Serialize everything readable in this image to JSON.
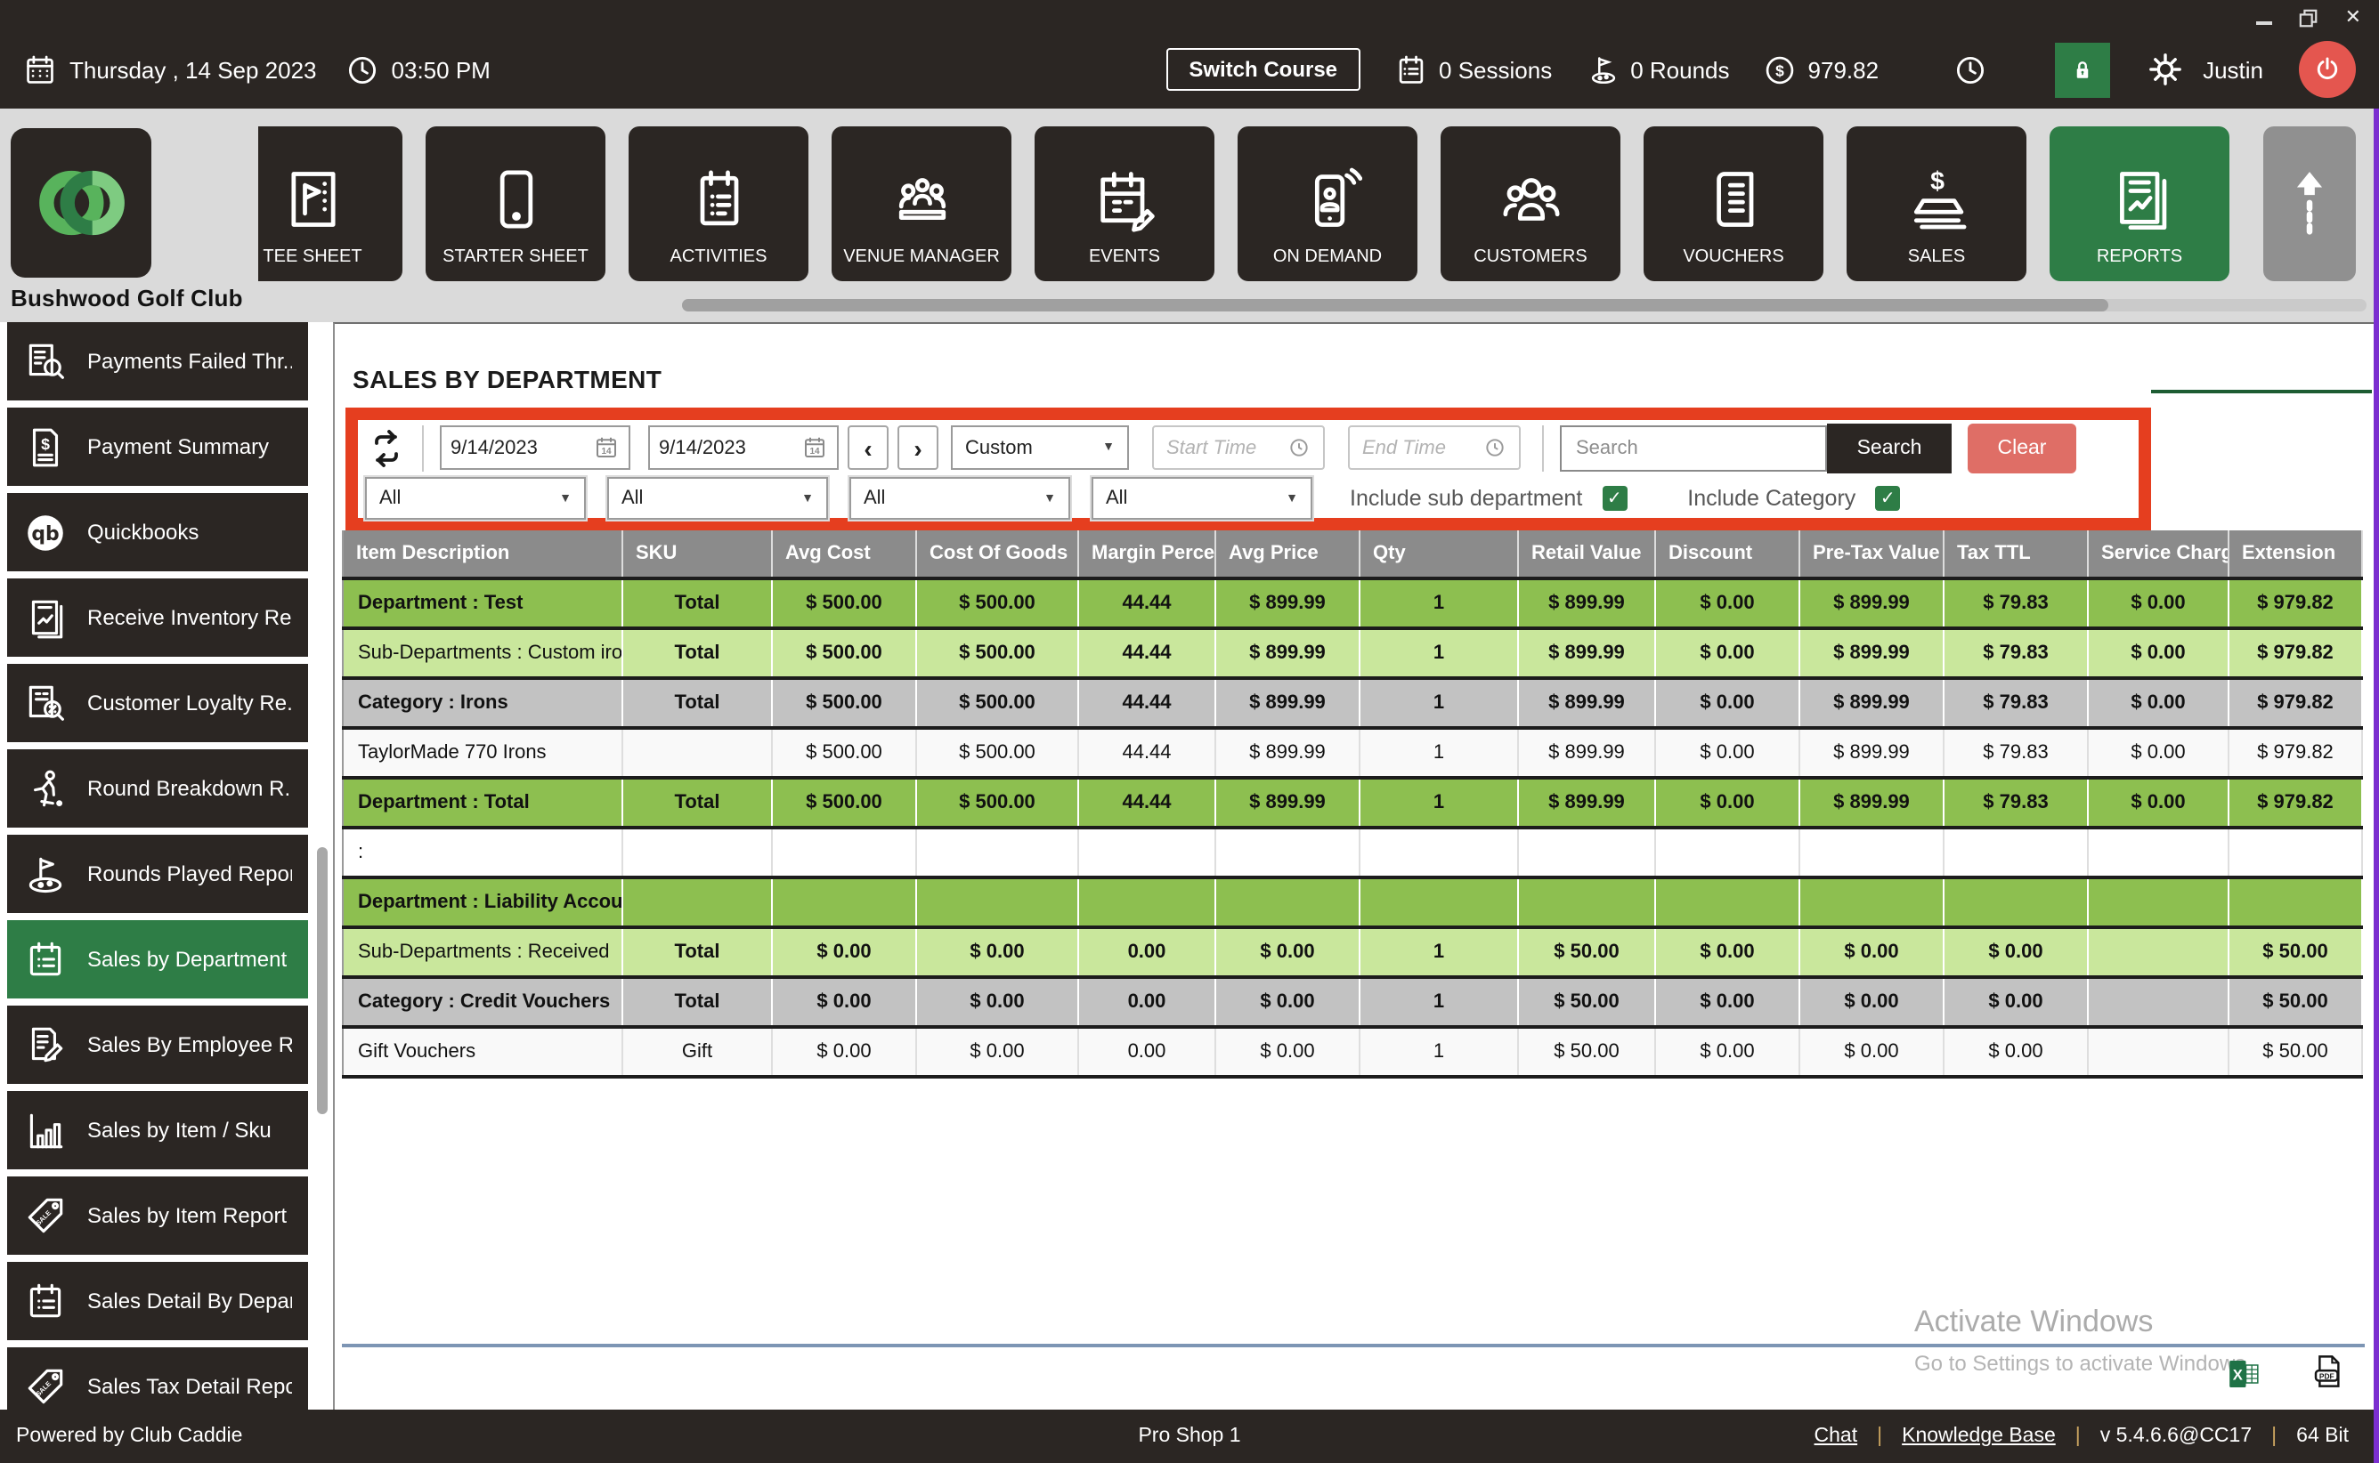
{
  "window": {
    "title_hidden": ""
  },
  "icons": {
    "check": "✓",
    "caret_down": "▼",
    "prev": "‹",
    "next": "›",
    "close": "✕"
  },
  "colors": {
    "accent_green": "#2e7d46",
    "dark": "#2b2623",
    "annotation_red": "#e53e1f",
    "dept_row": "#8dbf50",
    "subdept_row": "#c9e79c",
    "category_row": "#c2c2c2",
    "clear_btn": "#df6e66",
    "power_btn": "#e4564f"
  },
  "header": {
    "date": "Thursday ,  14 Sep 2023",
    "time": "03:50 PM",
    "switch_course": "Switch Course",
    "sessions": "0 Sessions",
    "rounds": "0 Rounds",
    "balance": "979.82",
    "user": "Justin"
  },
  "brand": {
    "club_name": "Bushwood Golf Club"
  },
  "nav": {
    "tiles": [
      {
        "label": "TEE SHEET",
        "icon": "tee-sheet-icon"
      },
      {
        "label": "STARTER SHEET",
        "icon": "starter-sheet-icon"
      },
      {
        "label": "ACTIVITIES",
        "icon": "activities-icon"
      },
      {
        "label": "VENUE MANAGER",
        "icon": "venue-manager-icon"
      },
      {
        "label": "EVENTS",
        "icon": "events-icon"
      },
      {
        "label": "ON DEMAND",
        "icon": "on-demand-icon"
      },
      {
        "label": "CUSTOMERS",
        "icon": "customers-icon"
      },
      {
        "label": "VOUCHERS",
        "icon": "vouchers-icon"
      },
      {
        "label": "SALES",
        "icon": "sales-icon"
      },
      {
        "label": "REPORTS",
        "icon": "reports-icon",
        "active": true
      }
    ]
  },
  "sidebar": {
    "items": [
      {
        "label": "Payments Failed Thr...",
        "icon": "payments-failed-icon"
      },
      {
        "label": "Payment Summary",
        "icon": "payment-summary-icon"
      },
      {
        "label": "Quickbooks",
        "icon": "quickbooks-icon"
      },
      {
        "label": "Receive Inventory Re...",
        "icon": "receive-inventory-icon"
      },
      {
        "label": "Customer Loyalty Re...",
        "icon": "customer-loyalty-icon"
      },
      {
        "label": "Round Breakdown R...",
        "icon": "round-breakdown-icon"
      },
      {
        "label": "Rounds Played Report",
        "icon": "rounds-played-icon"
      },
      {
        "label": "Sales by Department",
        "icon": "sales-by-department-icon",
        "active": true
      },
      {
        "label": "Sales By Employee R...",
        "icon": "sales-by-employee-icon"
      },
      {
        "label": "Sales by Item / Sku",
        "icon": "sales-by-item-sku-icon"
      },
      {
        "label": "Sales by Item Report",
        "icon": "sales-by-item-report-icon"
      },
      {
        "label": "Sales Detail By Depar...",
        "icon": "sales-detail-by-department-icon"
      },
      {
        "label": "Sales Tax Detail Report",
        "icon": "sales-tax-detail-icon"
      },
      {
        "label": "",
        "icon": "clipped-item-icon"
      }
    ]
  },
  "report": {
    "title": "SALES BY DEPARTMENT",
    "filters": {
      "start_date": "9/14/2023",
      "end_date": "9/14/2023",
      "range": "Custom",
      "start_time_placeholder": "Start Time",
      "end_time_placeholder": "End Time",
      "search_placeholder": "Search",
      "search_button": "Search",
      "clear_button": "Clear",
      "dropdowns": [
        "All",
        "All",
        "All",
        "All"
      ],
      "include_sub_department": {
        "label": "Include sub department",
        "checked": true
      },
      "include_category": {
        "label": "Include Category",
        "checked": true
      }
    },
    "table": {
      "columns": [
        "Item Description",
        "SKU",
        "Avg Cost",
        "Cost Of Goods",
        "Margin Percentage",
        "Avg Price",
        "Qty",
        "Retail Value",
        "Discount",
        "Pre-Tax Value",
        "Tax TTL",
        "Service Charge",
        "Extension"
      ],
      "rows": [
        {
          "type": "dept",
          "cells": [
            "Department : Test",
            "Total",
            "$ 500.00",
            "$ 500.00",
            "44.44",
            "$ 899.99",
            "1",
            "$ 899.99",
            "$ 0.00",
            "$ 899.99",
            "$ 79.83",
            "$ 0.00",
            "$ 979.82"
          ]
        },
        {
          "type": "subdept",
          "cells": [
            "Sub-Departments : Custom irons",
            "Total",
            "$ 500.00",
            "$ 500.00",
            "44.44",
            "$ 899.99",
            "1",
            "$ 899.99",
            "$ 0.00",
            "$ 899.99",
            "$ 79.83",
            "$ 0.00",
            "$ 979.82"
          ]
        },
        {
          "type": "category",
          "cells": [
            "Category : Irons",
            "Total",
            "$ 500.00",
            "$ 500.00",
            "44.44",
            "$ 899.99",
            "1",
            "$ 899.99",
            "$ 0.00",
            "$ 899.99",
            "$ 79.83",
            "$ 0.00",
            "$ 979.82"
          ]
        },
        {
          "type": "item",
          "cells": [
            "TaylorMade 770 Irons",
            "",
            "$ 500.00",
            "$ 500.00",
            "44.44",
            "$ 899.99",
            "1",
            "$ 899.99",
            "$ 0.00",
            "$ 899.99",
            "$ 79.83",
            "$ 0.00",
            "$ 979.82"
          ]
        },
        {
          "type": "dept",
          "cells": [
            "Department : Total",
            "Total",
            "$ 500.00",
            "$ 500.00",
            "44.44",
            "$ 899.99",
            "1",
            "$ 899.99",
            "$ 0.00",
            "$ 899.99",
            "$ 79.83",
            "$ 0.00",
            "$ 979.82"
          ]
        },
        {
          "type": "blank",
          "cells": [
            ":",
            "",
            "",
            "",
            "",
            "",
            "",
            "",
            "",
            "",
            "",
            "",
            ""
          ]
        },
        {
          "type": "dept",
          "cells": [
            "Department : Liability Account",
            "",
            "",
            "",
            "",
            "",
            "",
            "",
            "",
            "",
            "",
            "",
            ""
          ]
        },
        {
          "type": "subdept",
          "cells": [
            "Sub-Departments : Received",
            "Total",
            "$ 0.00",
            "$ 0.00",
            "0.00",
            "$ 0.00",
            "1",
            "$ 50.00",
            "$ 0.00",
            "$ 0.00",
            "$ 0.00",
            "",
            "$ 50.00"
          ]
        },
        {
          "type": "category",
          "cells": [
            "Category : Credit Vouchers",
            "Total",
            "$ 0.00",
            "$ 0.00",
            "0.00",
            "$ 0.00",
            "1",
            "$ 50.00",
            "$ 0.00",
            "$ 0.00",
            "$ 0.00",
            "",
            "$ 50.00"
          ]
        },
        {
          "type": "item",
          "cells": [
            "Gift Vouchers",
            "Gift",
            "$ 0.00",
            "$ 0.00",
            "0.00",
            "$ 0.00",
            "1",
            "$ 50.00",
            "$ 0.00",
            "$ 0.00",
            "$ 0.00",
            "",
            "$ 50.00"
          ]
        }
      ]
    }
  },
  "watermark": {
    "line1": "Activate Windows",
    "line2": "Go to Settings to activate Windows."
  },
  "footer": {
    "powered": "Powered by Club Caddie",
    "location": "Pro Shop 1",
    "chat_link": "Chat",
    "kb_link": "Knowledge Base",
    "version": "v 5.4.6.6@CC17",
    "bits": "64 Bit"
  }
}
